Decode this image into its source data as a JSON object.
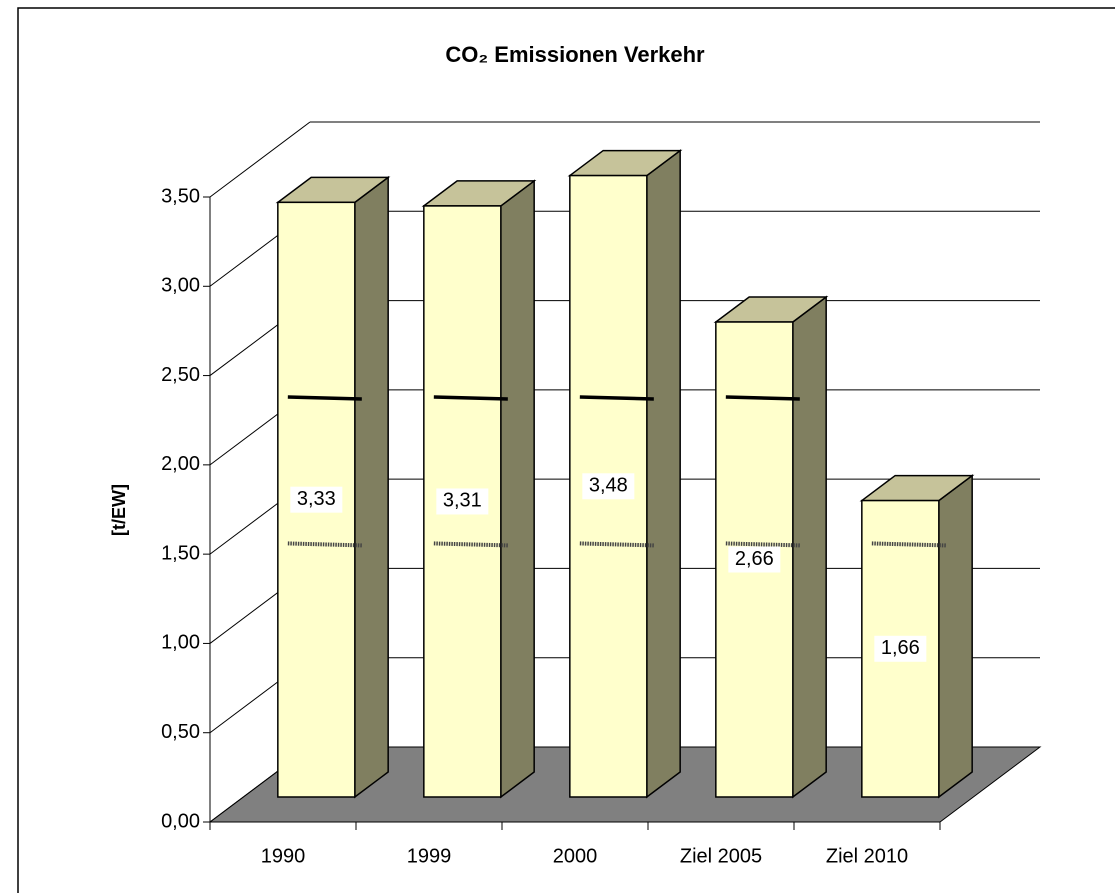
{
  "chart_data": {
    "type": "bar3d",
    "title": "CO₂ Emissionen Verkehr",
    "y_label": "[t/EW]",
    "categories": [
      "1990",
      "1999",
      "2000",
      "Ziel 2005",
      "Ziel 2010"
    ],
    "values": [
      3.33,
      3.31,
      3.48,
      2.66,
      1.66
    ],
    "value_labels": [
      "3,33",
      "3,31",
      "3,48",
      "2,66",
      "1,66"
    ],
    "colors": {
      "front": "#ffffcc",
      "top": "#c6c39a",
      "side": "#807f60",
      "floor": "#808080"
    },
    "ylim": [
      0,
      3.5
    ],
    "yticks": [
      {
        "value": 0,
        "label": "0,00"
      },
      {
        "value": 0.5,
        "label": "0,50"
      },
      {
        "value": 1,
        "label": "1,00"
      },
      {
        "value": 1.5,
        "label": "1,50"
      },
      {
        "value": 2,
        "label": "2,00"
      },
      {
        "value": 2.5,
        "label": "2,50"
      },
      {
        "value": 3,
        "label": "3,00"
      },
      {
        "value": 3.5,
        "label": "3,50"
      }
    ],
    "grid": true,
    "reference_lines": [
      {
        "style": "solid",
        "values": [
          2.24,
          2.24,
          2.24,
          2.24,
          null
        ]
      },
      {
        "style": "dotted",
        "values": [
          1.42,
          1.42,
          1.42,
          1.42,
          1.42
        ]
      }
    ]
  }
}
